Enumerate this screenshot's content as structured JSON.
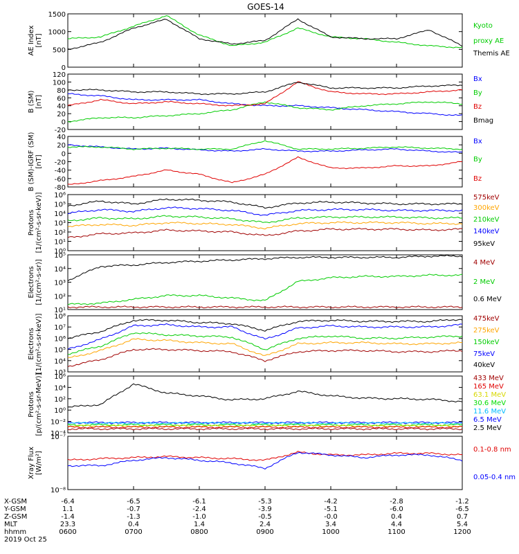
{
  "title": "GOES-14",
  "colors": {
    "axis": "#000000",
    "black": "#000000",
    "green": "#00cc00",
    "blue": "#0000ff",
    "red": "#e00000",
    "darkred": "#a00000",
    "orange": "#ffa500",
    "greenlight": "#00dd00",
    "cyan": "#00bbff",
    "yellow": "#d8d800"
  },
  "x_axis": {
    "time_range": [
      "0600",
      "1200"
    ],
    "tick_hours": [
      6,
      7,
      8,
      9,
      10,
      11,
      12
    ],
    "row_labels": [
      "X-GSM",
      "Y-GSM",
      "Z-GSM",
      "MLT",
      "hhmm",
      "2019 Oct 25"
    ],
    "rows": [
      [
        "-6.4",
        "-6.5",
        "-6.1",
        "-5.3",
        "-4.2",
        "-2.8",
        "-1.2"
      ],
      [
        "1.1",
        "-0.7",
        "-2.4",
        "-3.9",
        "-5.1",
        "-6.0",
        "-6.5"
      ],
      [
        "-1.4",
        "-1.3",
        "-1.0",
        "-0.5",
        "-0.0",
        "0.4",
        "0.7"
      ],
      [
        "23.3",
        "0.4",
        "1.4",
        "2.4",
        "3.4",
        "4.4",
        "5.4"
      ],
      [
        "0600",
        "0700",
        "0800",
        "0900",
        "1000",
        "1100",
        "1200"
      ]
    ]
  },
  "panels": [
    {
      "id": "ae",
      "ylabel": [
        "AE Index",
        "[nT]"
      ],
      "scale": "linear",
      "ylim": [
        0,
        1500
      ],
      "ticks": [
        "0",
        "500",
        "1000",
        "1500"
      ],
      "legend": [
        {
          "text": "Kyoto",
          "color": "green"
        },
        {
          "text": "proxy AE",
          "color": "green"
        },
        {
          "text": "Themis AE",
          "color": "black"
        }
      ]
    },
    {
      "id": "bsm",
      "ylabel": [
        "B (SM)",
        "[nT]"
      ],
      "scale": "linear",
      "ylim": [
        -20,
        120
      ],
      "ticks": [
        "-20",
        "0",
        "20",
        "40",
        "60",
        "80",
        "100",
        "120"
      ],
      "legend": [
        {
          "text": "Bx",
          "color": "blue"
        },
        {
          "text": "By",
          "color": "green"
        },
        {
          "text": "Bz",
          "color": "red"
        },
        {
          "text": "Bmag",
          "color": "black"
        }
      ]
    },
    {
      "id": "bigrf",
      "ylabel": [
        "B (SM)-IGRF (SM)",
        "[nT]"
      ],
      "scale": "linear",
      "ylim": [
        -80,
        40
      ],
      "ticks": [
        "-80",
        "-60",
        "-40",
        "-20",
        "0",
        "20",
        "40"
      ],
      "legend": [
        {
          "text": "Bx",
          "color": "blue"
        },
        {
          "text": "By",
          "color": "green"
        },
        {
          "text": "Bz",
          "color": "red"
        }
      ]
    },
    {
      "id": "protons_low",
      "ylabel": [
        "Protons",
        "[1/(cm²-s-sr-keV)]"
      ],
      "scale": "log",
      "ylim": [
        0,
        6
      ],
      "ticks": [
        "10⁰",
        "10¹",
        "10²",
        "10³",
        "10⁴",
        "10⁵",
        "10⁶"
      ],
      "legend": [
        {
          "text": "575keV",
          "color": "darkred"
        },
        {
          "text": "300keV",
          "color": "orange"
        },
        {
          "text": "210keV",
          "color": "green"
        },
        {
          "text": "140keV",
          "color": "blue"
        },
        {
          "text": "95keV",
          "color": "black"
        }
      ]
    },
    {
      "id": "electrons_high",
      "ylabel": [
        "Electrons",
        "[1/(cm²-s-sr)]"
      ],
      "scale": "log",
      "ylim": [
        0.7,
        5
      ],
      "ticks": [
        "10¹",
        "10²",
        "10³",
        "10⁴",
        "10⁵"
      ],
      "legend": [
        {
          "text": "4 MeV",
          "color": "darkred"
        },
        {
          "text": "2 MeV",
          "color": "green"
        },
        {
          "text": "0.6 MeV",
          "color": "black"
        }
      ]
    },
    {
      "id": "electrons_low",
      "ylabel": [
        "Electrons",
        "[1/(cm²-s-sr-keV)]"
      ],
      "scale": "log",
      "ylim": [
        3,
        8
      ],
      "ticks": [
        "10³",
        "10⁴",
        "10⁵",
        "10⁶",
        "10⁷",
        "10⁸"
      ],
      "legend": [
        {
          "text": "475keV",
          "color": "darkred"
        },
        {
          "text": "275keV",
          "color": "orange"
        },
        {
          "text": "150keV",
          "color": "green"
        },
        {
          "text": "75keV",
          "color": "blue"
        },
        {
          "text": "40keV",
          "color": "black"
        }
      ]
    },
    {
      "id": "protons_high",
      "ylabel": [
        "Protons",
        "[p/(cm²-s-sr-MeV)]"
      ],
      "scale": "log",
      "ylim": [
        -4,
        6
      ],
      "ticks": [
        "10⁻⁴",
        "10⁻²",
        "10⁰",
        "10²",
        "10⁴",
        "10⁶"
      ],
      "legend": [
        {
          "text": "433 MeV",
          "color": "darkred"
        },
        {
          "text": "165 MeV",
          "color": "red"
        },
        {
          "text": "63.1 MeV",
          "color": "yellow"
        },
        {
          "text": "30.6 MeV",
          "color": "greenlight"
        },
        {
          "text": "11.6 MeV",
          "color": "cyan"
        },
        {
          "text": "6.5 MeV",
          "color": "blue"
        },
        {
          "text": "2.5 MeV",
          "color": "black"
        }
      ]
    },
    {
      "id": "xray",
      "ylabel": [
        "Xray Flux",
        "[W/m²]"
      ],
      "scale": "log",
      "ylim": [
        -8,
        -7
      ],
      "ticks": [
        "10⁻⁸",
        "10⁻⁷"
      ],
      "legend": [
        {
          "text": "0.1-0.8 nm",
          "color": "red"
        },
        {
          "text": "0.05-0.4 nm",
          "color": "blue"
        }
      ]
    }
  ],
  "chart_data": [
    {
      "type": "line",
      "panel": "ae",
      "title": "GOES-14",
      "ylabel": "AE Index [nT]",
      "x": [
        6.0,
        6.5,
        7.0,
        7.5,
        8.0,
        8.5,
        9.0,
        9.5,
        10.0,
        10.5,
        11.0,
        11.5,
        12.0
      ],
      "series": [
        {
          "name": "Kyoto proxy AE",
          "color": "green",
          "values": [
            800,
            850,
            1150,
            1450,
            900,
            600,
            700,
            1100,
            850,
            800,
            700,
            600,
            550
          ]
        },
        {
          "name": "Themis AE",
          "color": "black",
          "values": [
            500,
            700,
            1100,
            1350,
            800,
            650,
            750,
            1350,
            850,
            800,
            800,
            1050,
            600
          ]
        }
      ]
    },
    {
      "type": "line",
      "panel": "bsm",
      "ylabel": "B (SM) [nT]",
      "x": [
        6.0,
        6.5,
        7.0,
        7.5,
        8.0,
        8.5,
        9.0,
        9.5,
        10.0,
        10.5,
        11.0,
        11.5,
        12.0
      ],
      "series": [
        {
          "name": "Bx",
          "color": "blue",
          "values": [
            70,
            65,
            55,
            55,
            55,
            45,
            40,
            40,
            35,
            30,
            25,
            20,
            15
          ]
        },
        {
          "name": "By",
          "color": "green",
          "values": [
            0,
            10,
            10,
            15,
            20,
            30,
            50,
            35,
            30,
            40,
            45,
            50,
            45
          ]
        },
        {
          "name": "Bz",
          "color": "red",
          "values": [
            40,
            55,
            45,
            50,
            45,
            40,
            45,
            100,
            75,
            70,
            70,
            75,
            80
          ]
        },
        {
          "name": "Bmag",
          "color": "black",
          "values": [
            80,
            80,
            75,
            75,
            70,
            70,
            75,
            100,
            85,
            85,
            85,
            90,
            92
          ]
        }
      ]
    },
    {
      "type": "line",
      "panel": "bigrf",
      "ylabel": "B (SM)-IGRF (SM) [nT]",
      "x": [
        6.0,
        6.5,
        7.0,
        7.5,
        8.0,
        8.5,
        9.0,
        9.5,
        10.0,
        10.5,
        11.0,
        11.5,
        12.0
      ],
      "series": [
        {
          "name": "Bx",
          "color": "blue",
          "values": [
            20,
            15,
            10,
            12,
            8,
            5,
            10,
            5,
            5,
            8,
            10,
            5,
            2
          ]
        },
        {
          "name": "By",
          "color": "green",
          "values": [
            15,
            15,
            10,
            12,
            10,
            10,
            30,
            10,
            10,
            12,
            15,
            12,
            10
          ]
        },
        {
          "name": "Bz",
          "color": "red",
          "values": [
            -75,
            -65,
            -55,
            -40,
            -50,
            -70,
            -50,
            -10,
            -35,
            -35,
            -30,
            -30,
            -20
          ]
        }
      ]
    },
    {
      "type": "line",
      "panel": "protons_low",
      "ylabel": "Protons [1/(cm²-s-sr-keV)]",
      "yscale": "log10",
      "x": [
        6.0,
        6.5,
        7.0,
        7.5,
        8.0,
        8.5,
        9.0,
        9.5,
        10.0,
        10.5,
        11.0,
        11.5,
        12.0
      ],
      "series": [
        {
          "name": "95keV",
          "color": "black",
          "values": [
            4.8,
            5.3,
            5.0,
            5.5,
            5.4,
            5.2,
            4.6,
            5.1,
            5.2,
            5.1,
            5.0,
            5.0,
            5.0
          ]
        },
        {
          "name": "140keV",
          "color": "blue",
          "values": [
            4.0,
            4.4,
            4.2,
            4.6,
            4.5,
            4.3,
            3.8,
            4.3,
            4.4,
            4.4,
            4.3,
            4.3,
            4.3
          ]
        },
        {
          "name": "210keV",
          "color": "green",
          "values": [
            3.2,
            3.5,
            3.4,
            3.7,
            3.6,
            3.4,
            3.0,
            3.5,
            3.6,
            3.6,
            3.6,
            3.5,
            3.5
          ]
        },
        {
          "name": "300keV",
          "color": "orange",
          "values": [
            2.6,
            2.8,
            2.7,
            3.0,
            2.9,
            2.8,
            2.4,
            2.9,
            3.0,
            3.0,
            3.0,
            2.9,
            2.9
          ]
        },
        {
          "name": "575keV",
          "color": "darkred",
          "values": [
            1.4,
            1.8,
            1.9,
            2.2,
            2.1,
            2.0,
            1.6,
            2.1,
            2.3,
            2.3,
            2.3,
            2.2,
            2.3
          ]
        }
      ]
    },
    {
      "type": "line",
      "panel": "electrons_high",
      "ylabel": "Electrons [1/(cm²-s-sr)]",
      "yscale": "log10",
      "x": [
        6.0,
        6.5,
        7.0,
        7.5,
        8.0,
        8.5,
        9.0,
        9.5,
        10.0,
        10.5,
        11.0,
        11.5,
        12.0
      ],
      "series": [
        {
          "name": "0.6 MeV",
          "color": "black",
          "values": [
            3.0,
            4.1,
            4.2,
            4.4,
            4.5,
            4.6,
            4.7,
            4.8,
            4.8,
            4.8,
            4.8,
            4.9,
            4.9
          ]
        },
        {
          "name": "2 MeV",
          "color": "green",
          "values": [
            1.1,
            1.2,
            1.5,
            1.8,
            1.8,
            1.6,
            1.4,
            2.9,
            3.2,
            3.3,
            3.3,
            3.4,
            3.4
          ]
        },
        {
          "name": "4 MeV",
          "color": "darkred",
          "values": [
            0.9,
            0.9,
            0.9,
            0.9,
            0.9,
            0.9,
            0.9,
            0.9,
            0.9,
            0.9,
            0.9,
            0.9,
            0.9
          ]
        }
      ]
    },
    {
      "type": "line",
      "panel": "electrons_low",
      "ylabel": "Electrons [1/(cm²-s-sr-keV)]",
      "yscale": "log10",
      "x": [
        6.0,
        6.5,
        7.0,
        7.5,
        8.0,
        8.5,
        9.0,
        9.5,
        10.0,
        10.5,
        11.0,
        11.5,
        12.0
      ],
      "series": [
        {
          "name": "40keV",
          "color": "black",
          "values": [
            6.0,
            6.6,
            7.6,
            7.6,
            7.4,
            7.3,
            6.7,
            7.5,
            7.6,
            7.5,
            7.5,
            7.5,
            7.7
          ]
        },
        {
          "name": "75keV",
          "color": "blue",
          "values": [
            5.0,
            5.9,
            7.1,
            7.2,
            7.0,
            7.0,
            5.9,
            6.9,
            7.1,
            7.0,
            7.0,
            7.0,
            7.2
          ]
        },
        {
          "name": "150keV",
          "color": "green",
          "values": [
            4.6,
            5.3,
            6.5,
            6.3,
            6.2,
            6.1,
            5.0,
            6.0,
            6.2,
            6.0,
            6.0,
            6.1,
            6.2
          ]
        },
        {
          "name": "275keV",
          "color": "orange",
          "values": [
            4.2,
            4.9,
            5.9,
            5.8,
            5.6,
            5.5,
            4.4,
            5.5,
            5.6,
            5.6,
            5.5,
            5.5,
            5.6
          ]
        },
        {
          "name": "475keV",
          "color": "darkred",
          "values": [
            3.5,
            4.1,
            5.0,
            5.0,
            4.9,
            4.8,
            4.0,
            4.8,
            4.9,
            4.9,
            4.8,
            4.8,
            4.9
          ]
        }
      ]
    },
    {
      "type": "line",
      "panel": "protons_high",
      "ylabel": "Protons [p/(cm²-s-sr-MeV)]",
      "yscale": "log10",
      "x": [
        6.0,
        6.5,
        7.0,
        7.5,
        8.0,
        8.5,
        9.0,
        9.5,
        10.0,
        10.5,
        11.0,
        11.5,
        12.0
      ],
      "series": [
        {
          "name": "2.5 MeV",
          "color": "black",
          "values": [
            0.5,
            1.0,
            4.6,
            3.0,
            2.5,
            1.8,
            2.0,
            3.3,
            2.5,
            2.1,
            2.0,
            1.9,
            1.5
          ]
        },
        {
          "name": "6.5 MeV",
          "color": "blue",
          "values": [
            -2.2,
            -2.2,
            -2.2,
            -2.2,
            -2.2,
            -2.2,
            -2.2,
            -2.2,
            -2.2,
            -2.2,
            -2.2,
            -2.2,
            -2.2
          ]
        },
        {
          "name": "11.6 MeV",
          "color": "cyan",
          "values": [
            -2.3,
            -2.3,
            -2.3,
            -2.3,
            -2.3,
            -2.3,
            -2.3,
            -2.3,
            -2.3,
            -2.3,
            -2.3,
            -2.3,
            -2.3
          ]
        },
        {
          "name": "30.6 MeV",
          "color": "greenlight",
          "values": [
            -2.6,
            -2.6,
            -2.6,
            -2.6,
            -2.6,
            -2.6,
            -2.6,
            -2.6,
            -2.6,
            -2.6,
            -2.6,
            -2.6,
            -2.6
          ]
        },
        {
          "name": "63.1 MeV",
          "color": "yellow",
          "values": [
            -2.8,
            -2.8,
            -2.8,
            -2.8,
            -2.8,
            -2.8,
            -2.8,
            -2.8,
            -2.8,
            -2.8,
            -2.8,
            -2.8,
            -2.8
          ]
        },
        {
          "name": "165 MeV",
          "color": "red",
          "values": [
            -3.0,
            -3.0,
            -3.0,
            -3.0,
            -3.0,
            -3.0,
            -3.0,
            -3.0,
            -3.0,
            -3.0,
            -3.0,
            -3.0,
            -3.0
          ]
        },
        {
          "name": "433 MeV",
          "color": "darkred",
          "values": [
            -3.3,
            -3.3,
            -3.3,
            -3.3,
            -3.3,
            -3.3,
            -3.3,
            -3.3,
            -3.3,
            -3.3,
            -3.3,
            -3.3,
            -3.3
          ]
        }
      ]
    },
    {
      "type": "line",
      "panel": "xray",
      "ylabel": "Xray Flux [W/m²]",
      "yscale": "log10",
      "x": [
        6.0,
        6.5,
        7.0,
        7.5,
        8.0,
        8.5,
        9.0,
        9.5,
        10.0,
        10.5,
        11.0,
        11.5,
        12.0
      ],
      "series": [
        {
          "name": "0.1-0.8 nm",
          "color": "red",
          "values": [
            -7.45,
            -7.42,
            -7.4,
            -7.38,
            -7.4,
            -7.42,
            -7.45,
            -7.3,
            -7.35,
            -7.35,
            -7.32,
            -7.32,
            -7.35
          ]
        },
        {
          "name": "0.05-0.4 nm",
          "color": "blue",
          "values": [
            -7.55,
            -7.55,
            -7.45,
            -7.4,
            -7.45,
            -7.5,
            -7.6,
            -7.3,
            -7.35,
            -7.4,
            -7.35,
            -7.35,
            -7.45
          ]
        }
      ]
    }
  ]
}
